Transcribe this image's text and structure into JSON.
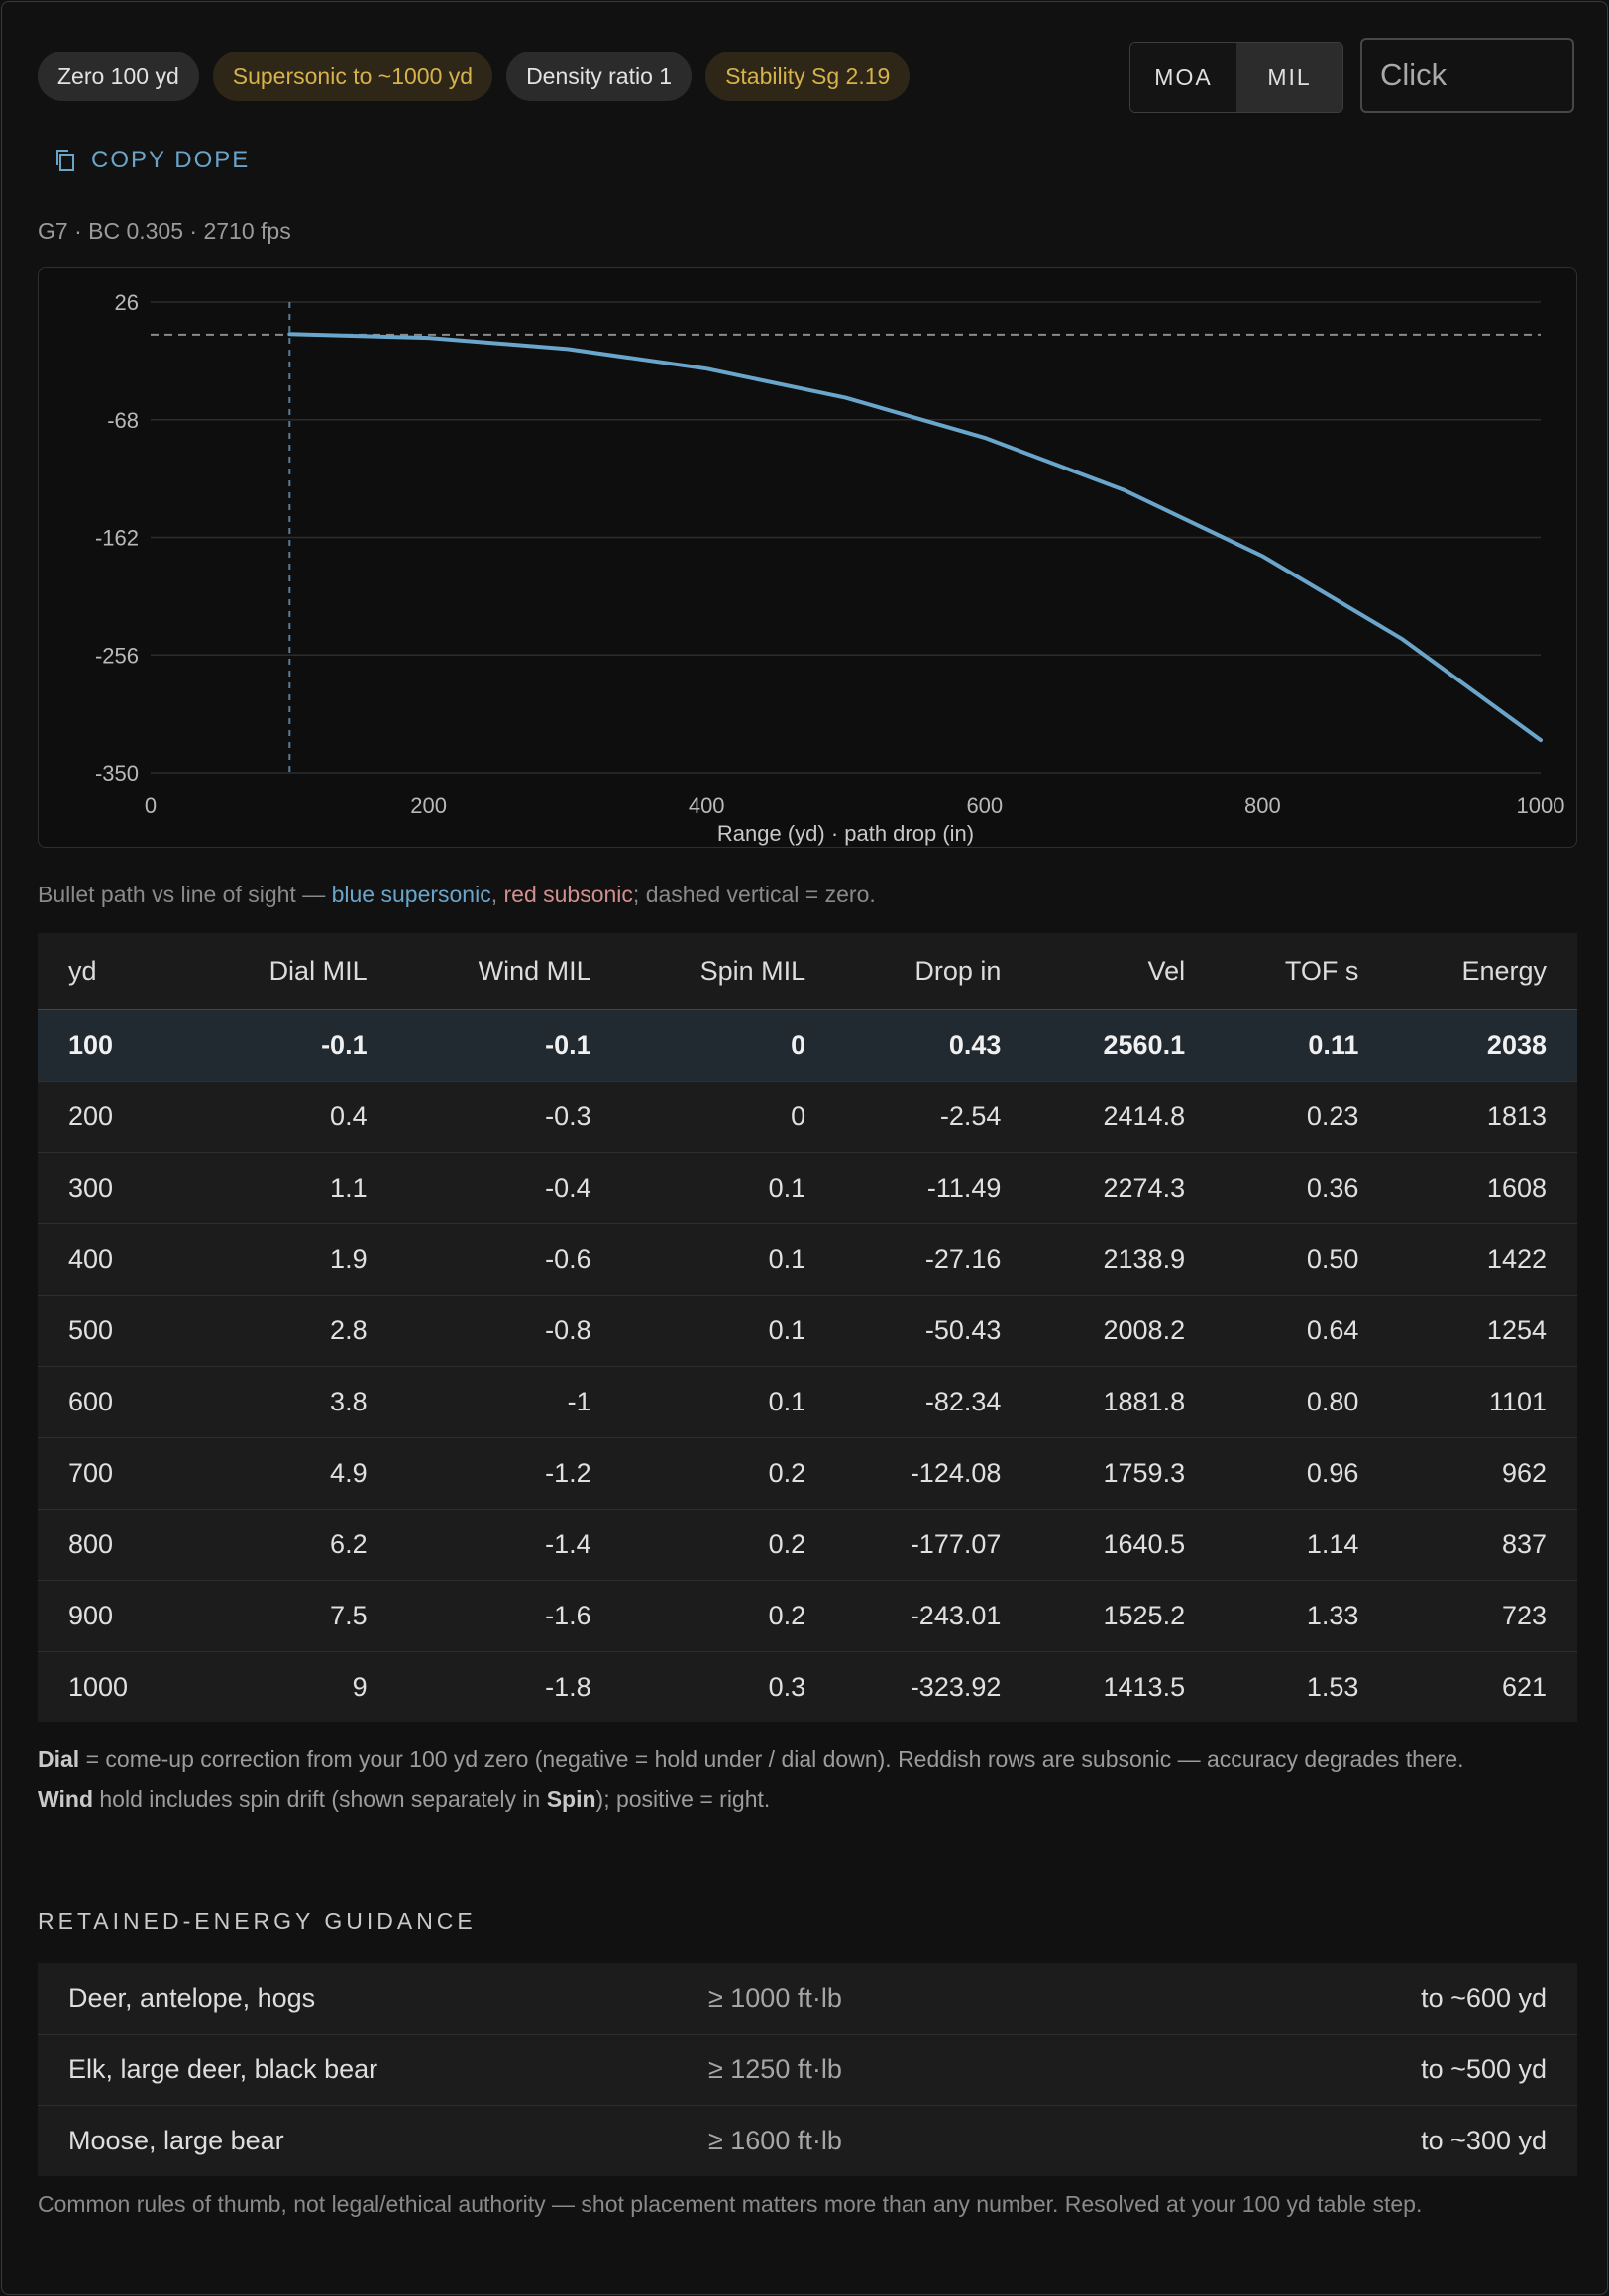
{
  "toolbar": {
    "chips": [
      {
        "label": "Zero 100 yd"
      },
      {
        "label": "Supersonic to ~1000 yd"
      },
      {
        "label": "Density ratio 1"
      },
      {
        "label": "Stability Sg 2.19"
      }
    ],
    "units": [
      "MOA",
      "MIL"
    ],
    "active_unit": "MIL",
    "click_placeholder": "Click",
    "copy_label": "COPY DOPE"
  },
  "summary": "G7 · BC 0.305 · 2710 fps",
  "colors": {
    "supersonic": "#6aa6cc",
    "subsonic": "#d18f8f",
    "warn": "#d6b24a",
    "background": "#111111"
  },
  "chart_data": {
    "type": "line",
    "xlabel": "Range (yd) · path drop (in)",
    "ylabel": "",
    "xlim": [
      0,
      1000
    ],
    "ylim": [
      -350,
      26
    ],
    "xticks": [
      0,
      200,
      400,
      600,
      800,
      1000
    ],
    "yticks": [
      26,
      -68,
      -162,
      -256,
      -350
    ],
    "grid": true,
    "zero_range": 100,
    "line_of_sight": 0,
    "series": [
      {
        "x": [
          100,
          200,
          300,
          400,
          500,
          600,
          700,
          800,
          900,
          1000
        ],
        "y": [
          0.43,
          -2.54,
          -11.49,
          -27.16,
          -50.43,
          -82.34,
          -124.08,
          -177.07,
          -243.01,
          -323.92
        ]
      }
    ]
  },
  "caption": {
    "prefix": "Bullet path vs line of sight — ",
    "blue": "blue supersonic",
    "comma": ", ",
    "red": "red subsonic",
    "suffix": "; dashed vertical = zero."
  },
  "table": {
    "headers": [
      "yd",
      "Dial MIL",
      "Wind MIL",
      "Spin MIL",
      "Drop in",
      "Vel",
      "TOF s",
      "Energy"
    ],
    "rows": [
      [
        "100",
        "-0.1",
        "-0.1",
        "0",
        "0.43",
        "2560.1",
        "0.11",
        "2038"
      ],
      [
        "200",
        "0.4",
        "-0.3",
        "0",
        "-2.54",
        "2414.8",
        "0.23",
        "1813"
      ],
      [
        "300",
        "1.1",
        "-0.4",
        "0.1",
        "-11.49",
        "2274.3",
        "0.36",
        "1608"
      ],
      [
        "400",
        "1.9",
        "-0.6",
        "0.1",
        "-27.16",
        "2138.9",
        "0.50",
        "1422"
      ],
      [
        "500",
        "2.8",
        "-0.8",
        "0.1",
        "-50.43",
        "2008.2",
        "0.64",
        "1254"
      ],
      [
        "600",
        "3.8",
        "-1",
        "0.1",
        "-82.34",
        "1881.8",
        "0.80",
        "1101"
      ],
      [
        "700",
        "4.9",
        "-1.2",
        "0.2",
        "-124.08",
        "1759.3",
        "0.96",
        "962"
      ],
      [
        "800",
        "6.2",
        "-1.4",
        "0.2",
        "-177.07",
        "1640.5",
        "1.14",
        "837"
      ],
      [
        "900",
        "7.5",
        "-1.6",
        "0.2",
        "-243.01",
        "1525.2",
        "1.33",
        "723"
      ],
      [
        "1000",
        "9",
        "-1.8",
        "0.3",
        "-323.92",
        "1413.5",
        "1.53",
        "621"
      ]
    ]
  },
  "notes": {
    "dial_term": "Dial",
    "dial_text": " = come-up correction from your 100 yd zero (negative = hold under / dial down). Reddish rows are subsonic — accuracy degrades there.",
    "wind_term": "Wind",
    "wind_text_1": " hold includes spin drift (shown separately in ",
    "spin_term": "Spin",
    "wind_text_2": "); positive = right."
  },
  "energy": {
    "title": "RETAINED-ENERGY GUIDANCE",
    "rows": [
      {
        "game": "Deer, antelope, hogs",
        "threshold": "≥ 1000 ft·lb",
        "range": "to ~600 yd"
      },
      {
        "game": "Elk, large deer, black bear",
        "threshold": "≥ 1250 ft·lb",
        "range": "to ~500 yd"
      },
      {
        "game": "Moose, large bear",
        "threshold": "≥ 1600 ft·lb",
        "range": "to ~300 yd"
      }
    ],
    "footnote": "Common rules of thumb, not legal/ethical authority — shot placement matters more than any number. Resolved at your 100 yd table step."
  }
}
